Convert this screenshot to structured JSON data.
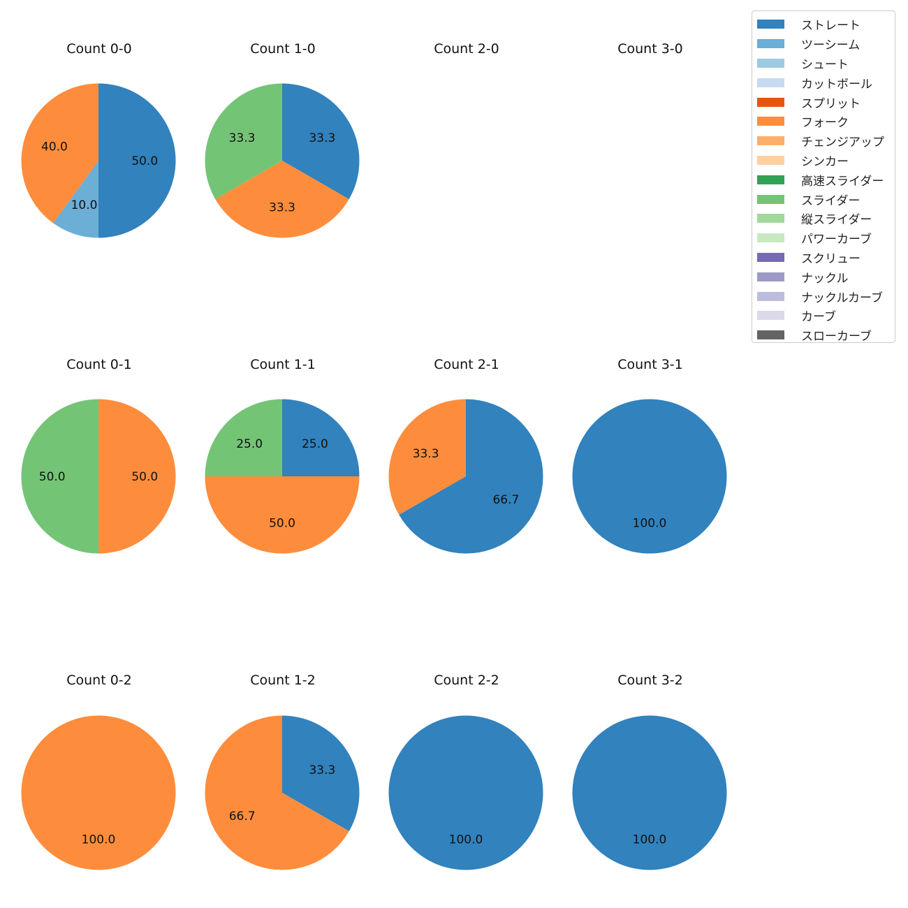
{
  "chart_data": {
    "type": "pie",
    "legend": {
      "placement": "top-right",
      "entries": [
        {
          "label": "ストレート",
          "color": "#3182bd"
        },
        {
          "label": "ツーシーム",
          "color": "#6baed6"
        },
        {
          "label": "シュート",
          "color": "#9ecae1"
        },
        {
          "label": "カットボール",
          "color": "#c6dbef"
        },
        {
          "label": "スプリット",
          "color": "#e6550d"
        },
        {
          "label": "フォーク",
          "color": "#fd8d3c"
        },
        {
          "label": "チェンジアップ",
          "color": "#fdae6b"
        },
        {
          "label": "シンカー",
          "color": "#fdd0a2"
        },
        {
          "label": "高速スライダー",
          "color": "#31a354"
        },
        {
          "label": "スライダー",
          "color": "#74c476"
        },
        {
          "label": "縦スライダー",
          "color": "#a1d99b"
        },
        {
          "label": "パワーカーブ",
          "color": "#c7e9c0"
        },
        {
          "label": "スクリュー",
          "color": "#756bb1"
        },
        {
          "label": "ナックル",
          "color": "#9e9ac8"
        },
        {
          "label": "ナックルカーブ",
          "color": "#bcbddc"
        },
        {
          "label": "カーブ",
          "color": "#dadaeb"
        },
        {
          "label": "スローカーブ",
          "color": "#636363"
        }
      ]
    },
    "pies": [
      {
        "title": "Count 0-0",
        "row": 0,
        "col": 0,
        "slices": [
          {
            "pitch": "ストレート",
            "value": 50.0
          },
          {
            "pitch": "ツーシーム",
            "value": 10.0
          },
          {
            "pitch": "フォーク",
            "value": 40.0
          }
        ]
      },
      {
        "title": "Count 1-0",
        "row": 0,
        "col": 1,
        "slices": [
          {
            "pitch": "ストレート",
            "value": 33.3
          },
          {
            "pitch": "フォーク",
            "value": 33.3
          },
          {
            "pitch": "スライダー",
            "value": 33.3
          }
        ]
      },
      {
        "title": "Count 2-0",
        "row": 0,
        "col": 2,
        "slices": []
      },
      {
        "title": "Count 3-0",
        "row": 0,
        "col": 3,
        "slices": []
      },
      {
        "title": "Count 0-1",
        "row": 1,
        "col": 0,
        "slices": [
          {
            "pitch": "フォーク",
            "value": 50.0
          },
          {
            "pitch": "スライダー",
            "value": 50.0
          }
        ]
      },
      {
        "title": "Count 1-1",
        "row": 1,
        "col": 1,
        "slices": [
          {
            "pitch": "ストレート",
            "value": 25.0
          },
          {
            "pitch": "フォーク",
            "value": 50.0
          },
          {
            "pitch": "スライダー",
            "value": 25.0
          }
        ]
      },
      {
        "title": "Count 2-1",
        "row": 1,
        "col": 2,
        "slices": [
          {
            "pitch": "ストレート",
            "value": 66.7
          },
          {
            "pitch": "フォーク",
            "value": 33.3
          }
        ]
      },
      {
        "title": "Count 3-1",
        "row": 1,
        "col": 3,
        "slices": [
          {
            "pitch": "ストレート",
            "value": 100.0
          }
        ]
      },
      {
        "title": "Count 0-2",
        "row": 2,
        "col": 0,
        "slices": [
          {
            "pitch": "フォーク",
            "value": 100.0
          }
        ]
      },
      {
        "title": "Count 1-2",
        "row": 2,
        "col": 1,
        "slices": [
          {
            "pitch": "ストレート",
            "value": 33.3
          },
          {
            "pitch": "フォーク",
            "value": 66.7
          }
        ]
      },
      {
        "title": "Count 2-2",
        "row": 2,
        "col": 2,
        "slices": [
          {
            "pitch": "ストレート",
            "value": 100.0
          }
        ]
      },
      {
        "title": "Count 3-2",
        "row": 2,
        "col": 3,
        "slices": [
          {
            "pitch": "ストレート",
            "value": 100.0
          }
        ]
      }
    ]
  }
}
